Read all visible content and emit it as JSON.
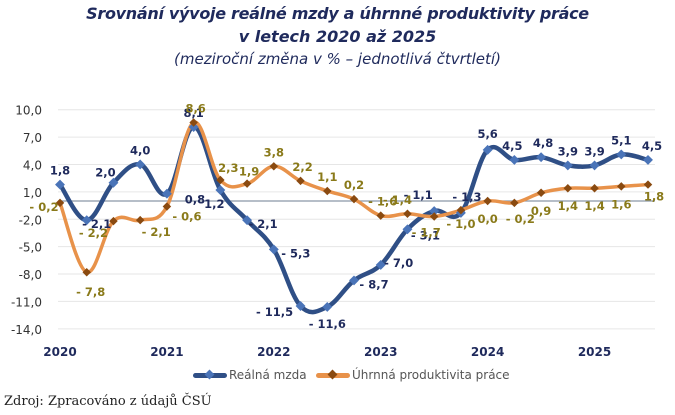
{
  "title": {
    "line1": "Srovnání vývoje reálné mzdy a úhrnné produktivity práce",
    "line2": "v letech 2020 až 2025",
    "line3": "(meziroční změna v % – jednotlivá čtvrtletí)"
  },
  "source": "Zdroj: Zpracováno z údajů ČSÚ",
  "colors": {
    "wage": "#2f4f86",
    "wage_marker": "#4a74b8",
    "productivity": "#e8924a",
    "productivity_marker": "#8a4a10",
    "wage_label": "#1f2a5c",
    "productivity_label": "#8a7a1a",
    "grid": "#e6e6e6",
    "zero_line": "#8a96a8"
  },
  "chart_data": {
    "type": "line",
    "title": "Srovnání vývoje reálné mzdy a úhrnné produktivity práce v letech 2020 až 2025",
    "subtitle": "(meziroční změna v % – jednotlivá čtvrtletí)",
    "xlabel": "",
    "ylabel": "",
    "ylim": [
      -14.0,
      10.0
    ],
    "y_ticks": [
      "10,0",
      "7,0",
      "4,0",
      "1,0",
      "-2,0",
      "-5,0",
      "-8,0",
      "-11,0",
      "-14,0"
    ],
    "y_tick_values": [
      10,
      7,
      4,
      1,
      -2,
      -5,
      -8,
      -11,
      -14
    ],
    "x": [
      "2020Q1",
      "2020Q2",
      "2020Q3",
      "2020Q4",
      "2021Q1",
      "2021Q2",
      "2021Q3",
      "2021Q4",
      "2022Q1",
      "2022Q2",
      "2022Q3",
      "2022Q4",
      "2023Q1",
      "2023Q2",
      "2023Q3",
      "2023Q4",
      "2024Q1",
      "2024Q2",
      "2024Q3",
      "2024Q4",
      "2025Q1",
      "2025Q2",
      "2025Q3"
    ],
    "x_tick_labels": [
      "2020",
      "2021",
      "2022",
      "2023",
      "2024",
      "2025"
    ],
    "x_tick_indices": [
      0,
      4,
      8,
      12,
      16,
      20
    ],
    "grid": true,
    "legend_position": "bottom",
    "series": [
      {
        "name": "Reálná mzda",
        "key": "wage",
        "values": [
          1.8,
          -2.1,
          2.0,
          4.0,
          0.8,
          8.1,
          1.2,
          -2.1,
          -5.3,
          -11.5,
          -11.6,
          -8.7,
          -7.0,
          -3.1,
          -1.1,
          -1.3,
          5.6,
          4.5,
          4.8,
          3.9,
          3.9,
          5.1,
          4.5
        ],
        "labels": [
          "1,8",
          "- 2,1",
          "2,0",
          "4,0",
          "0,8",
          "8,1",
          "1,2",
          "- 2,1",
          "- 5,3",
          "- 11,5",
          "- 11,6",
          "- 8,7",
          "- 7,0",
          "- 3,1",
          "- 1,1",
          "- 1,3",
          "5,6",
          "4,5",
          "4,8",
          "3,9",
          "3,9",
          "5,1",
          "4,5"
        ]
      },
      {
        "name": "Úhrnná produktivita práce",
        "key": "productivity",
        "values": [
          -0.2,
          -7.8,
          -2.2,
          -2.1,
          -0.6,
          8.6,
          2.3,
          1.9,
          3.8,
          2.2,
          1.1,
          0.2,
          -1.6,
          -1.4,
          -1.7,
          -1.0,
          0.0,
          -0.2,
          0.9,
          1.4,
          1.4,
          1.6,
          1.8
        ],
        "labels": [
          "- 0,2",
          "- 7,8",
          "- 2,2",
          "- 2,1",
          "- 0,6",
          "8,6",
          "2,3",
          "1,9",
          "3,8",
          "2,2",
          "1,1",
          "0,2",
          "- 1,6",
          "- 1,4",
          "- 1,7",
          "- 1,0",
          "0,0",
          "- 0,2",
          "0,9",
          "1,4",
          "1,4",
          "1,6",
          "1,8"
        ]
      }
    ]
  }
}
